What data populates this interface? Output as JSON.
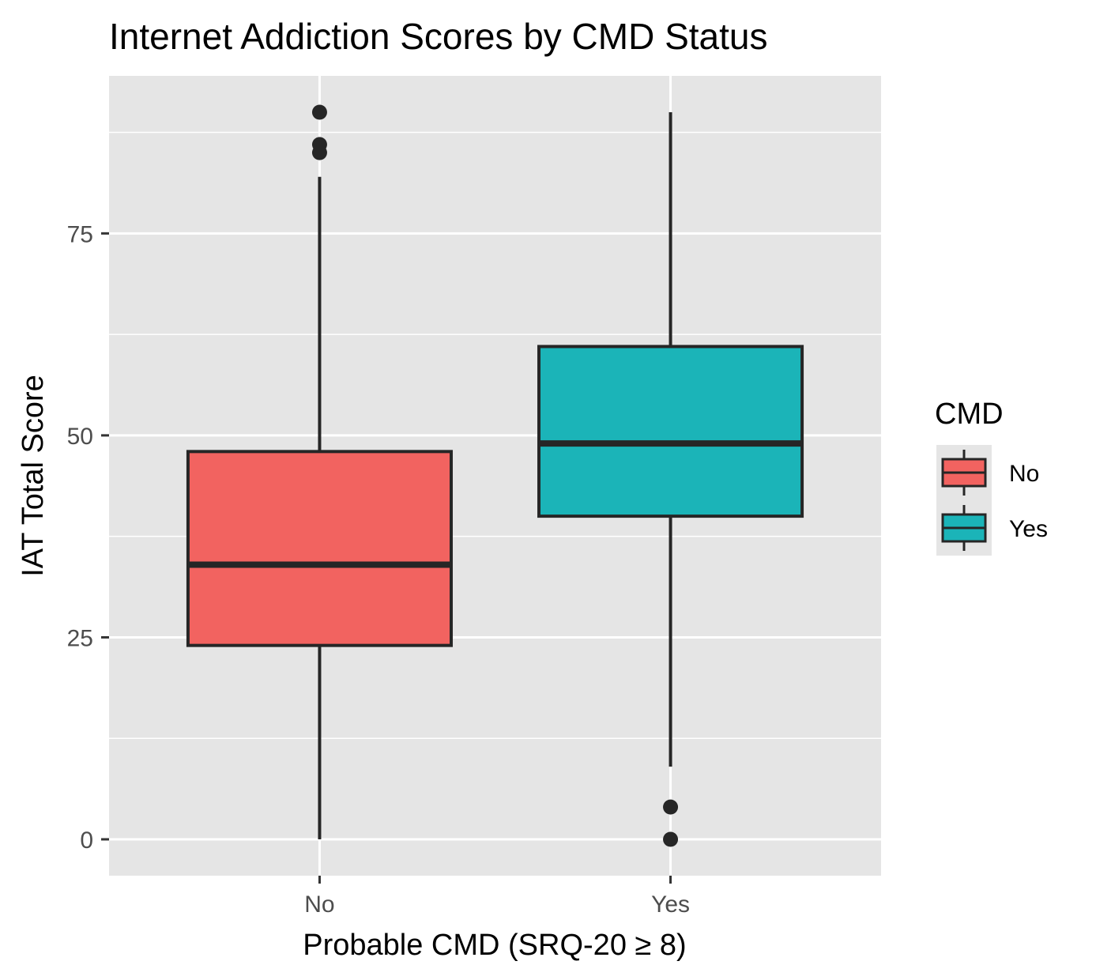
{
  "chart_data": {
    "type": "boxplot",
    "title": "Internet Addiction Scores by CMD Status",
    "xlabel": "Probable CMD (SRQ-20 ≥ 8)",
    "ylabel": "IAT Total Score",
    "categories": [
      "No",
      "Yes"
    ],
    "ylim": [
      -4.5,
      94.5
    ],
    "yticks": [
      0,
      25,
      50,
      75
    ],
    "grid": true,
    "legend": {
      "title": "CMD",
      "placement": "right",
      "entries": [
        {
          "label": "No",
          "color": "#F26360"
        },
        {
          "label": "Yes",
          "color": "#1BB4B8"
        }
      ]
    },
    "boxes": [
      {
        "category": "No",
        "color": "#F26360",
        "whisker_low": 0,
        "q1": 24,
        "median": 34,
        "q3": 48,
        "whisker_high": 82,
        "outliers": [
          90,
          86,
          85
        ]
      },
      {
        "category": "Yes",
        "color": "#1BB4B8",
        "whisker_low": 9,
        "q1": 40,
        "median": 49,
        "q3": 61,
        "whisker_high": 90,
        "outliers": [
          4,
          0
        ]
      }
    ]
  },
  "colors": {
    "panel_background": "#E5E5E5",
    "grid": "#FFFFFF",
    "outline": "#262626",
    "axis_text": "#4D4D4D"
  }
}
